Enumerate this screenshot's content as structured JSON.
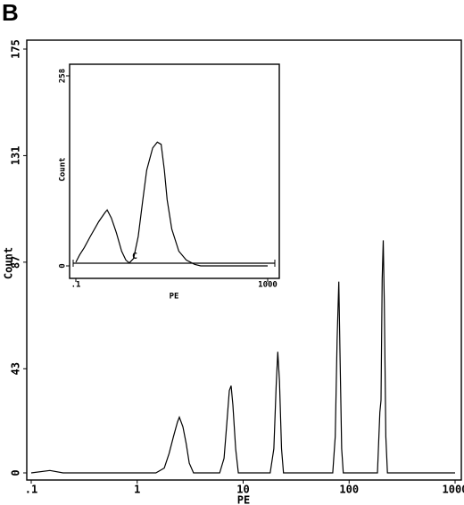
{
  "panel_label": "B",
  "chart_data": [
    {
      "type": "line",
      "xlabel": "PE",
      "ylabel": "Count",
      "xscale": "log",
      "color": "#000000",
      "xlim": [
        0.1,
        1000
      ],
      "ylim": [
        0,
        175
      ],
      "xticks": [
        {
          "value": 0.1,
          "label": ".1"
        },
        1,
        10,
        100,
        1000
      ],
      "yticks": [
        0,
        43,
        87,
        131,
        175
      ],
      "x": [
        0.1,
        0.15,
        0.2,
        1.5,
        1.8,
        2.0,
        2.2,
        2.4,
        2.5,
        2.7,
        2.9,
        3.1,
        3.4,
        6.0,
        6.6,
        7.0,
        7.4,
        7.7,
        8.0,
        8.5,
        9.0,
        18,
        19.5,
        20.5,
        21.2,
        22,
        23,
        24,
        70,
        74,
        77,
        80,
        82,
        85,
        88,
        185,
        195,
        200,
        205,
        210,
        215,
        222,
        230,
        1000
      ],
      "values": [
        0,
        1,
        0,
        0,
        2,
        8,
        15,
        21,
        23,
        19,
        12,
        4,
        0,
        0,
        6,
        20,
        34,
        36,
        28,
        10,
        0,
        0,
        10,
        36,
        50,
        38,
        10,
        0,
        0,
        15,
        55,
        79,
        50,
        10,
        0,
        0,
        25,
        30,
        80,
        96,
        70,
        15,
        0,
        0
      ]
    },
    {
      "type": "line",
      "xlabel": "PE",
      "ylabel": "Count",
      "xscale": "log",
      "color": "#000000",
      "gate_label": "C",
      "xlim": [
        0.1,
        1000
      ],
      "ylim": [
        0,
        258
      ],
      "xticks": [
        {
          "value": 0.1,
          "label": ".1"
        },
        1000
      ],
      "yticks": [
        0,
        258
      ],
      "x": [
        0.1,
        0.12,
        0.15,
        0.2,
        0.3,
        0.4,
        0.45,
        0.55,
        0.7,
        0.9,
        1.1,
        1.3,
        1.6,
        2,
        2.5,
        3,
        4,
        5,
        6,
        7,
        8,
        10,
        14,
        20,
        30,
        40,
        1000
      ],
      "values": [
        5,
        15,
        25,
        40,
        60,
        72,
        76,
        65,
        45,
        20,
        8,
        4,
        10,
        40,
        90,
        130,
        160,
        168,
        165,
        130,
        90,
        50,
        20,
        8,
        2,
        0,
        0
      ]
    }
  ]
}
